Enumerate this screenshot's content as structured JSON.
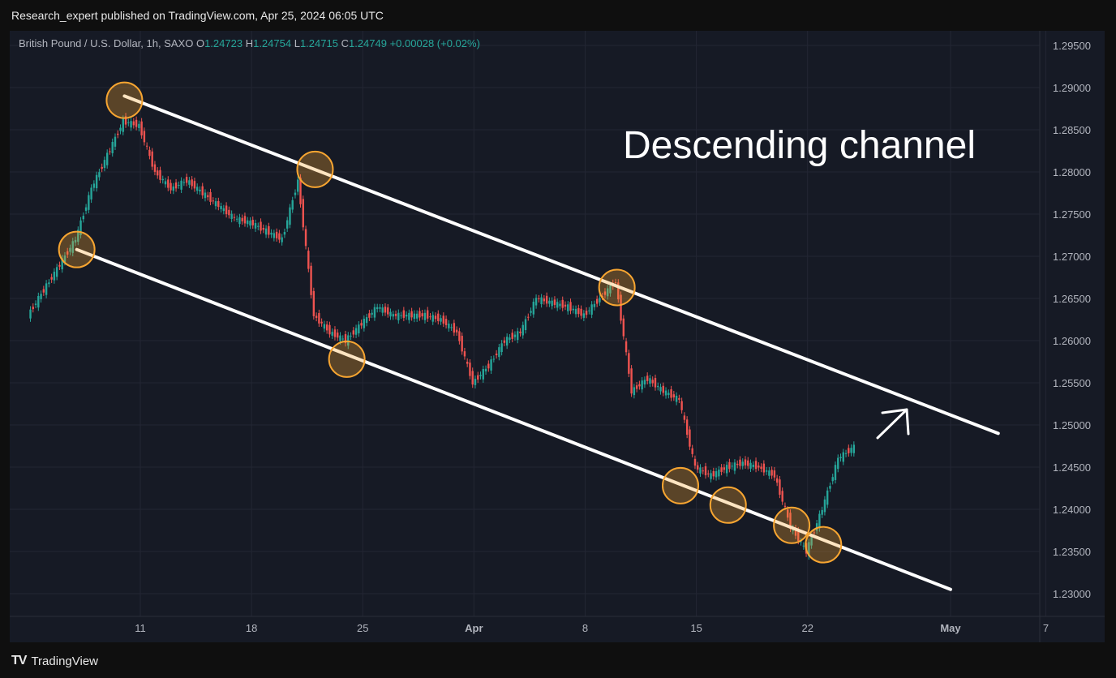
{
  "header": {
    "published": "Research_expert published on TradingView.com, Apr 25, 2024 06:05 UTC"
  },
  "legend": {
    "symbol": "British Pound / U.S. Dollar, 1h, SAXO",
    "o_label": "O",
    "o": "1.24723",
    "h_label": "H",
    "h": "1.24754",
    "l_label": "L",
    "l": "1.24715",
    "c_label": "C",
    "c": "1.24749",
    "change": "+0.00028 (+0.02%)"
  },
  "annotation": "Descending channel",
  "brand": {
    "name": "TradingView",
    "logo": "TV"
  },
  "colors": {
    "background": "#161a25",
    "up": "#26a69a",
    "down": "#ef5350",
    "channel": "#ffffff",
    "marker": "#f7a531",
    "grid": "#232633"
  },
  "chart_data": {
    "type": "line",
    "title": "",
    "instrument": "British Pound / U.S. Dollar, 1h, SAXO",
    "xlabel": "",
    "ylabel": "",
    "ylim": [
      1.2295,
      1.2955
    ],
    "y_ticks": [
      "1.29500",
      "1.29000",
      "1.28500",
      "1.28000",
      "1.27500",
      "1.27000",
      "1.26500",
      "1.26000",
      "1.25500",
      "1.25000",
      "1.24500",
      "1.24000",
      "1.23500",
      "1.23000"
    ],
    "x_ticks": [
      "11",
      "18",
      "25",
      "Apr",
      "8",
      "15",
      "22",
      "May",
      "7"
    ],
    "grid": true,
    "series": [
      {
        "x": [
          "Mar 4",
          "Mar 5",
          "Mar 6",
          "Mar 7",
          "Mar 8",
          "Mar 9",
          "Mar 10",
          "Mar 11",
          "Mar 12",
          "Mar 13",
          "Mar 14",
          "Mar 15",
          "Mar 16",
          "Mar 17",
          "Mar 18",
          "Mar 19",
          "Mar 20",
          "Mar 21",
          "Mar 22",
          "Mar 23",
          "Mar 24",
          "Mar 25",
          "Mar 26",
          "Mar 27",
          "Mar 28",
          "Mar 29",
          "Mar 30",
          "Mar 31",
          "Apr 1",
          "Apr 2",
          "Apr 3",
          "Apr 4",
          "Apr 5",
          "Apr 6",
          "Apr 7",
          "Apr 8",
          "Apr 9",
          "Apr 10",
          "Apr 11",
          "Apr 12",
          "Apr 13",
          "Apr 14",
          "Apr 15",
          "Apr 16",
          "Apr 17",
          "Apr 18",
          "Apr 19",
          "Apr 20",
          "Apr 21",
          "Apr 22",
          "Apr 23",
          "Apr 24",
          "Apr 25"
        ],
        "values": [
          1.263,
          1.266,
          1.269,
          1.272,
          1.278,
          1.282,
          1.286,
          1.2855,
          1.28,
          1.278,
          1.279,
          1.2775,
          1.276,
          1.2745,
          1.274,
          1.273,
          1.272,
          1.279,
          1.263,
          1.261,
          1.26,
          1.262,
          1.264,
          1.263,
          1.263,
          1.263,
          1.2625,
          1.261,
          1.255,
          1.257,
          1.26,
          1.261,
          1.265,
          1.2645,
          1.264,
          1.263,
          1.265,
          1.267,
          1.254,
          1.2555,
          1.254,
          1.253,
          1.245,
          1.244,
          1.245,
          1.2455,
          1.245,
          1.244,
          1.238,
          1.235,
          1.24,
          1.246,
          1.2474
        ]
      }
    ],
    "channel_upper": {
      "from": {
        "x": "Mar 10",
        "y": 1.289
      },
      "to": {
        "x": "May 4",
        "y": 1.249
      }
    },
    "channel_lower": {
      "from": {
        "x": "Mar 7",
        "y": 1.2708
      },
      "to": {
        "x": "May 1",
        "y": 1.2305
      }
    },
    "touch_points": [
      {
        "x": "Mar 10",
        "y": 1.2885
      },
      {
        "x": "Mar 7",
        "y": 1.2708
      },
      {
        "x": "Mar 22",
        "y": 1.2803
      },
      {
        "x": "Mar 24",
        "y": 1.2578
      },
      {
        "x": "Apr 10",
        "y": 1.2663
      },
      {
        "x": "Apr 14",
        "y": 1.2428
      },
      {
        "x": "Apr 17",
        "y": 1.2405
      },
      {
        "x": "Apr 21",
        "y": 1.2381
      },
      {
        "x": "Apr 23",
        "y": 1.2358
      }
    ]
  }
}
